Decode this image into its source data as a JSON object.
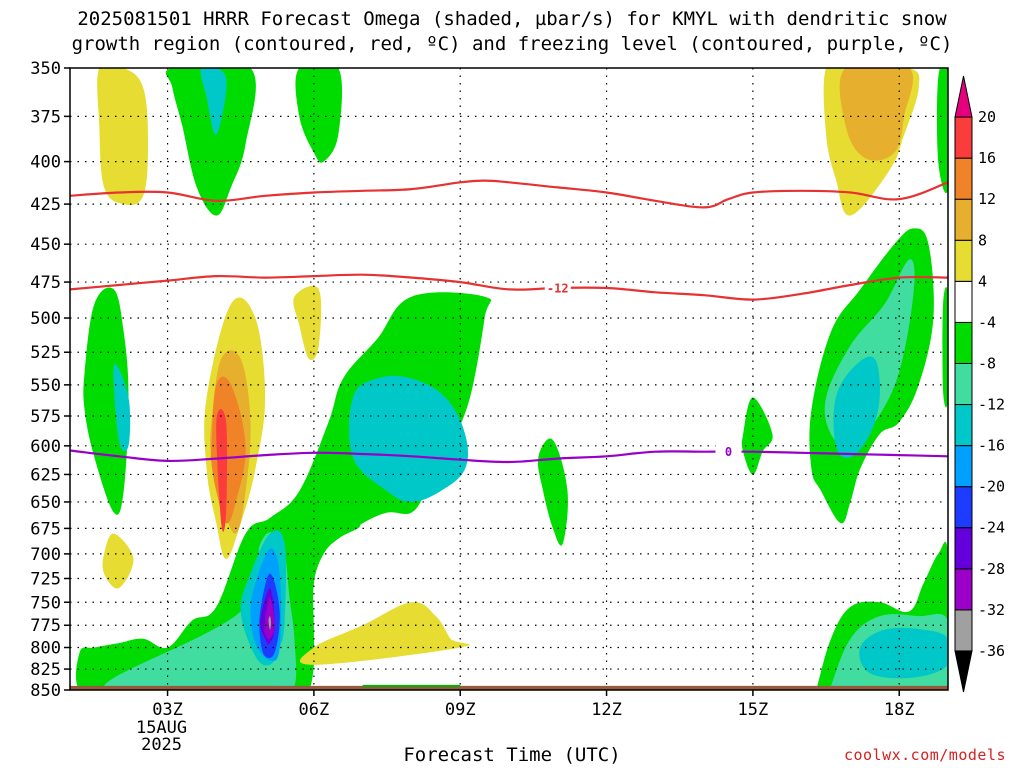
{
  "title": {
    "line1": "2025081501 HRRR Forecast Omega (shaded, µbar/s) for KMYL with dendritic snow",
    "line2": "growth region (contoured, red, ºC) and freezing level (contoured, purple, ºC)"
  },
  "credit": "coolwx.com/models",
  "chart_data": {
    "type": "heatmap",
    "xlabel": "Forecast Time (UTC)",
    "ylabel": "",
    "x_range_hours": [
      1,
      19
    ],
    "y_range_hPa": [
      850,
      350
    ],
    "y_ticks": [
      350,
      375,
      400,
      425,
      450,
      475,
      500,
      525,
      550,
      575,
      600,
      625,
      650,
      675,
      700,
      725,
      750,
      775,
      800,
      825,
      850
    ],
    "x_ticks": [
      {
        "hour": 3,
        "label": "03Z",
        "sub": [
          "15AUG",
          "2025"
        ]
      },
      {
        "hour": 6,
        "label": "06Z"
      },
      {
        "hour": 9,
        "label": "09Z"
      },
      {
        "hour": 12,
        "label": "12Z"
      },
      {
        "hour": 15,
        "label": "15Z"
      },
      {
        "hour": 18,
        "label": "18Z"
      }
    ],
    "grid": true,
    "colorbar": {
      "levels": [
        -36,
        -32,
        -28,
        -24,
        -20,
        -16,
        -12,
        -8,
        -4,
        4,
        8,
        12,
        16,
        20
      ],
      "colors": [
        "#000000",
        "#a0a0a0",
        "#9a00c8",
        "#6400dc",
        "#1e3cff",
        "#00a0ff",
        "#00c8c8",
        "#40dca0",
        "#00dc00",
        "#ffffff",
        "#e6dc32",
        "#e6af2d",
        "#f08228",
        "#fa3c3c",
        "#e6007d"
      ]
    },
    "omega_regions": [
      {
        "level": 4,
        "color": "#e6dc32",
        "hours": [
          1.6,
          2.1,
          2.5,
          2.6,
          2.5,
          2.1,
          1.7,
          1.6
        ],
        "pressures": [
          350,
          350,
          360,
          390,
          420,
          425,
          415,
          380
        ]
      },
      {
        "level": -4,
        "color": "#00dc00",
        "hours": [
          3.1,
          4.7,
          4.6,
          4.3,
          4.0,
          3.6,
          3.3,
          3.1
        ],
        "pressures": [
          350,
          350,
          390,
          415,
          432,
          415,
          380,
          360
        ]
      },
      {
        "level": -12,
        "color": "#00c8c8",
        "hours": [
          3.7,
          4.2,
          4.0,
          3.8
        ],
        "pressures": [
          350,
          355,
          385,
          365
        ]
      },
      {
        "level": -4,
        "color": "#00dc00",
        "hours": [
          5.7,
          6.5,
          6.5,
          6.2,
          6.0,
          5.7
        ],
        "pressures": [
          350,
          350,
          385,
          400,
          395,
          375
        ]
      },
      {
        "level": 4,
        "color": "#e6dc32",
        "hours": [
          16.5,
          17.0,
          18.2,
          18.4,
          18.1,
          17.8,
          17.0,
          16.7,
          16.5
        ],
        "pressures": [
          350,
          350,
          350,
          360,
          385,
          405,
          432,
          410,
          385
        ]
      },
      {
        "level": 8,
        "color": "#e6af2d",
        "hours": [
          16.9,
          18.2,
          18.1,
          17.9,
          17.3,
          16.9
        ],
        "pressures": [
          350,
          350,
          375,
          395,
          398,
          380
        ]
      },
      {
        "level": -4,
        "color": "#00dc00",
        "hours": [
          18.8,
          19.0,
          19.0,
          18.8
        ],
        "pressures": [
          355,
          350,
          415,
          400
        ]
      },
      {
        "level": -4,
        "color": "#00dc00",
        "hours": [
          1.3,
          1.5,
          1.9,
          2.1,
          2.2,
          2.1,
          1.9,
          1.5,
          1.3
        ],
        "pressures": [
          540,
          490,
          480,
          510,
          560,
          640,
          660,
          610,
          570
        ]
      },
      {
        "level": -12,
        "color": "#00c8c8",
        "hours": [
          1.9,
          2.2,
          2.2,
          2.0
        ],
        "pressures": [
          535,
          560,
          600,
          595
        ]
      },
      {
        "level": 4,
        "color": "#e6dc32",
        "hours": [
          3.8,
          4.3,
          4.8,
          5.0,
          4.8,
          4.5,
          4.2,
          4.0,
          3.8
        ],
        "pressures": [
          560,
          490,
          500,
          560,
          620,
          670,
          705,
          670,
          620
        ]
      },
      {
        "level": 8,
        "color": "#e6af2d",
        "hours": [
          3.9,
          4.1,
          4.5,
          4.7,
          4.6,
          4.4,
          4.1,
          3.9
        ],
        "pressures": [
          580,
          530,
          530,
          580,
          640,
          680,
          650,
          610
        ]
      },
      {
        "level": 12,
        "color": "#f08228",
        "hours": [
          3.9,
          4.0,
          4.3,
          4.6,
          4.4,
          4.2,
          4.0,
          3.9
        ],
        "pressures": [
          600,
          550,
          550,
          600,
          650,
          670,
          640,
          615
        ]
      },
      {
        "level": 16,
        "color": "#fa3c3c",
        "hours": [
          4.0,
          4.2,
          4.2,
          4.1
        ],
        "pressures": [
          580,
          580,
          660,
          670
        ]
      },
      {
        "level": 4,
        "color": "#e6dc32",
        "hours": [
          5.6,
          6.1,
          6.1,
          5.9,
          5.7
        ],
        "pressures": [
          485,
          480,
          520,
          530,
          505
        ]
      },
      {
        "level": 4,
        "color": "#e6dc32",
        "hours": [
          1.7,
          1.9,
          2.3,
          2.0,
          1.7
        ],
        "pressures": [
          700,
          680,
          705,
          735,
          720
        ]
      },
      {
        "level": -4,
        "color": "#00dc00",
        "hours": [
          1.2,
          1.5,
          2.0,
          2.5,
          3.0,
          3.5,
          4.0,
          4.6,
          5.1,
          5.7,
          6.3,
          6.6,
          7.3,
          8.0,
          9.5,
          9.5,
          9.2,
          8.8,
          8.5,
          8.3,
          8.0,
          7.5,
          7.0,
          6.9,
          6.5,
          6.2,
          6.0,
          6.0,
          6.0,
          5.9,
          5.7,
          5.0,
          4.0,
          3.0,
          2.0,
          1.2
        ],
        "pressures": [
          805,
          800,
          795,
          790,
          800,
          770,
          755,
          680,
          665,
          640,
          580,
          545,
          515,
          485,
          485,
          500,
          560,
          600,
          620,
          640,
          660,
          660,
          670,
          675,
          685,
          700,
          730,
          780,
          820,
          850,
          850,
          850,
          850,
          850,
          850,
          850
        ]
      },
      {
        "level": -8,
        "color": "#40dca0",
        "hours": [
          1.7,
          3.8,
          4.8,
          5.2,
          5.6,
          5.6,
          5.5,
          5.4,
          5.2,
          4.9,
          4.5
        ],
        "pressures": [
          845,
          845,
          845,
          845,
          845,
          790,
          745,
          700,
          680,
          690,
          760
        ]
      },
      {
        "level": -12,
        "color": "#00c8c8",
        "hours": [
          4.5,
          4.7,
          5.1,
          5.4,
          5.4,
          5.3,
          5.1,
          4.8
        ],
        "pressures": [
          760,
          720,
          680,
          690,
          770,
          800,
          820,
          810
        ]
      },
      {
        "level": -16,
        "color": "#00a0ff",
        "hours": [
          4.7,
          4.8,
          5.1,
          5.3,
          5.3,
          5.1,
          4.8
        ],
        "pressures": [
          760,
          730,
          695,
          720,
          800,
          815,
          795
        ]
      },
      {
        "level": -20,
        "color": "#1e3cff",
        "hours": [
          4.9,
          5.1,
          5.3,
          5.2,
          5.0,
          4.9
        ],
        "pressures": [
          760,
          720,
          760,
          805,
          810,
          790
        ]
      },
      {
        "level": -24,
        "color": "#6400dc",
        "hours": [
          4.9,
          5.1,
          5.2,
          5.1,
          5.0
        ],
        "pressures": [
          770,
          735,
          775,
          795,
          790
        ]
      },
      {
        "level": -28,
        "color": "#9a00c8",
        "hours": [
          5.0,
          5.1,
          5.2,
          5.1,
          5.0
        ],
        "pressures": [
          770,
          745,
          775,
          790,
          785
        ]
      },
      {
        "level": -32,
        "color": "#a0a0a0",
        "hours": [
          5.07,
          5.1,
          5.12,
          5.1
        ],
        "pressures": [
          770,
          765,
          772,
          780
        ]
      },
      {
        "level": -12,
        "color": "#00c8c8",
        "hours": [
          6.8,
          7.3,
          8.0,
          8.7,
          9.1,
          9.1,
          8.6,
          8.0,
          7.5,
          6.8
        ],
        "pressures": [
          560,
          545,
          545,
          560,
          590,
          620,
          640,
          650,
          640,
          610
        ]
      },
      {
        "level": 4,
        "color": "#e6dc32",
        "hours": [
          6.0,
          7.0,
          8.0,
          8.5,
          8.8,
          9.0,
          6.0
        ],
        "pressures": [
          800,
          775,
          750,
          765,
          790,
          800,
          820
        ]
      },
      {
        "level": -4,
        "color": "#00dc00",
        "hours": [
          10.6,
          10.9,
          11.2,
          11.1,
          10.9,
          10.7
        ],
        "pressures": [
          610,
          595,
          640,
          690,
          675,
          640
        ]
      },
      {
        "level": -4,
        "color": "#00dc00",
        "hours": [
          14.8,
          15.0,
          15.4,
          15.2,
          15.0,
          14.8
        ],
        "pressures": [
          590,
          560,
          590,
          605,
          625,
          605
        ]
      },
      {
        "level": -4,
        "color": "#00dc00",
        "hours": [
          16.2,
          16.6,
          17.2,
          17.9,
          18.3,
          18.6,
          18.7,
          18.4,
          18.0,
          17.6,
          17.2,
          17.0,
          16.8,
          16.4,
          16.2
        ],
        "pressures": [
          570,
          510,
          480,
          450,
          440,
          450,
          500,
          550,
          580,
          590,
          620,
          650,
          670,
          640,
          620
        ]
      },
      {
        "level": -8,
        "color": "#40dca0",
        "hours": [
          16.5,
          17.0,
          17.7,
          18.2,
          18.3,
          18.0,
          17.5,
          17.0,
          16.6
        ],
        "pressures": [
          560,
          520,
          490,
          460,
          480,
          540,
          580,
          600,
          590
        ]
      },
      {
        "level": -12,
        "color": "#00c8c8",
        "hours": [
          16.7,
          17.1,
          17.5,
          17.6,
          17.4,
          17.0,
          16.7
        ],
        "pressures": [
          560,
          535,
          530,
          560,
          590,
          610,
          600
        ]
      },
      {
        "level": -4,
        "color": "#00dc00",
        "hours": [
          18.9,
          19.0,
          19.0,
          18.9
        ],
        "pressures": [
          490,
          485,
          560,
          555
        ]
      },
      {
        "level": -4,
        "color": "#00dc00",
        "hours": [
          16.3,
          16.6,
          17.0,
          17.6,
          18.2,
          18.5,
          18.8,
          19.0,
          19.0,
          16.3
        ],
        "pressures": [
          850,
          790,
          755,
          750,
          760,
          730,
          700,
          700,
          850,
          850
        ]
      },
      {
        "level": -8,
        "color": "#40dca0",
        "hours": [
          16.6,
          17.0,
          17.6,
          18.4,
          19.0,
          19.0,
          16.6
        ],
        "pressures": [
          845,
          790,
          765,
          765,
          770,
          845,
          845
        ]
      },
      {
        "level": -12,
        "color": "#00c8c8",
        "hours": [
          17.2,
          17.7,
          18.5,
          19.0,
          19.0,
          18.3,
          17.4
        ],
        "pressures": [
          800,
          780,
          780,
          790,
          820,
          835,
          830
        ]
      }
    ],
    "dendritic_isotherms": [
      {
        "value": -12,
        "label": "-12",
        "label_hour": 11.0,
        "color": "#e63232",
        "hours": [
          1,
          2,
          3,
          4,
          5,
          6,
          7,
          8,
          9,
          10,
          11,
          12,
          13,
          14,
          15,
          16,
          17,
          18,
          19
        ],
        "pressures": [
          480,
          477,
          474,
          471,
          472,
          471,
          470,
          472,
          475,
          480,
          479,
          479,
          482,
          484,
          487,
          483,
          477,
          472,
          472
        ]
      },
      {
        "value": -18,
        "label": "",
        "color": "#e63232",
        "hours": [
          1,
          2,
          3,
          4,
          5,
          6,
          7,
          8,
          9,
          9.5,
          10,
          11,
          12,
          13,
          14,
          14.5,
          15,
          16,
          17,
          18,
          19
        ],
        "pressures": [
          420,
          418,
          418,
          423,
          420,
          418,
          417,
          416,
          412,
          411,
          412,
          415,
          418,
          423,
          427,
          422,
          418,
          417,
          418,
          422,
          412
        ]
      }
    ],
    "freezing_level": {
      "value": 0,
      "label": "0",
      "label_hour": 14.5,
      "color": "#9600c8",
      "hours": [
        1,
        2,
        3,
        4,
        5,
        6,
        7,
        8,
        9,
        10,
        11,
        12,
        13,
        14,
        15,
        16,
        17,
        18,
        19
      ],
      "pressures": [
        604,
        609,
        613,
        611,
        608,
        606,
        607,
        609,
        612,
        614,
        611,
        609,
        605,
        605,
        605,
        606,
        607,
        608,
        609
      ]
    },
    "ground_band": {
      "color": "#965a3c",
      "pressure_top": 845,
      "pressure_bottom": 850
    },
    "surface_contour": {
      "color": "#00b400",
      "hours": [
        7.0,
        9.0
      ],
      "pressure": 845
    }
  }
}
